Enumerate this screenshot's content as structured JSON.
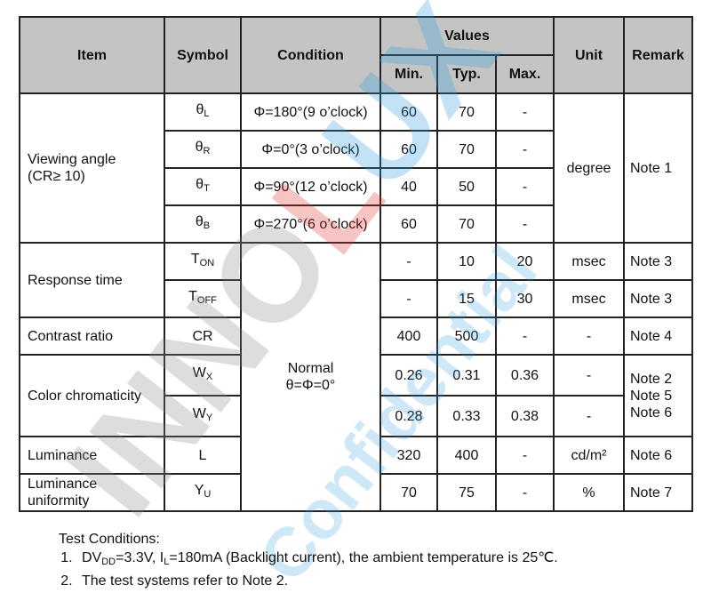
{
  "header": {
    "item": "Item",
    "symbol": "Symbol",
    "condition": "Condition",
    "values": "Values",
    "min": "Min.",
    "typ": "Typ.",
    "max": "Max.",
    "unit": "Unit",
    "remark": "Remark"
  },
  "viewing": {
    "item": "Viewing angle",
    "item2": "(CR≥ 10)",
    "unit": "degree",
    "remark": "Note 1",
    "rows": [
      {
        "sym": "θ",
        "sub": "L",
        "cond": "Φ=180°(9 o’clock)",
        "min": "60",
        "typ": "70",
        "max": "-"
      },
      {
        "sym": "θ",
        "sub": "R",
        "cond": "Φ=0°(3 o’clock)",
        "min": "60",
        "typ": "70",
        "max": "-"
      },
      {
        "sym": "θ",
        "sub": "T",
        "cond": "Φ=90°(12 o’clock)",
        "min": "40",
        "typ": "50",
        "max": "-"
      },
      {
        "sym": "θ",
        "sub": "B",
        "cond": "Φ=270°(6 o’clock)",
        "min": "60",
        "typ": "70",
        "max": "-"
      }
    ]
  },
  "normal_condition": {
    "line1": "Normal",
    "line2": "θ=Φ=0°"
  },
  "response": {
    "item": "Response time",
    "rows": [
      {
        "sym": "T",
        "sub": "ON",
        "min": "-",
        "typ": "10",
        "max": "20",
        "unit": "msec",
        "remark": "Note 3"
      },
      {
        "sym": "T",
        "sub": "OFF",
        "min": "-",
        "typ": "15",
        "max": "30",
        "unit": "msec",
        "remark": "Note 3"
      }
    ]
  },
  "contrast": {
    "item": "Contrast ratio",
    "sym": "CR",
    "min": "400",
    "typ": "500",
    "max": "-",
    "unit": "-",
    "remark": "Note 4"
  },
  "chroma": {
    "item": "Color chromaticity",
    "remark1": "Note 2",
    "remark2": "Note 5",
    "remark3": "Note 6",
    "rows": [
      {
        "sym": "W",
        "sub": "X",
        "min": "0.26",
        "typ": "0.31",
        "max": "0.36",
        "unit": "-"
      },
      {
        "sym": "W",
        "sub": "Y",
        "min": "0.28",
        "typ": "0.33",
        "max": "0.38",
        "unit": "-"
      }
    ]
  },
  "luminance": {
    "item": "Luminance",
    "sym": "L",
    "min": "320",
    "typ": "400",
    "max": "-",
    "unit": "cd/m²",
    "remark": "Note 6"
  },
  "uniformity": {
    "item1": "Luminance",
    "item2": "uniformity",
    "sym": "Y",
    "sub": "U",
    "min": "70",
    "typ": "75",
    "max": "-",
    "unit": "%",
    "remark": "Note 7"
  },
  "notes": {
    "title": "Test Conditions:",
    "n1a": "DV",
    "n1sub": "DD",
    "n1b": "=3.3V, I",
    "n1sub2": "L",
    "n1c": "=180mA (Backlight current), the ambient temperature is 25℃.",
    "n2": "The test systems refer to Note 2."
  },
  "watermark": {
    "a": "INNO",
    "b": "L",
    "c": "UX",
    "d": "Confidential",
    "colors": {
      "gray": "#888888",
      "red": "#e53030",
      "blue": "#2a9be0"
    }
  }
}
